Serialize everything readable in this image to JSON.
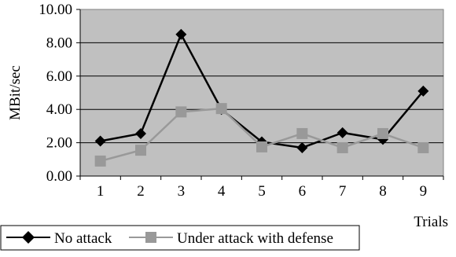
{
  "chart_data": {
    "type": "line",
    "title": "",
    "xlabel": "Trials",
    "ylabel": "MBit/sec",
    "categories": [
      "1",
      "2",
      "3",
      "4",
      "5",
      "6",
      "7",
      "8",
      "9"
    ],
    "y_ticks": [
      "0.00",
      "2.00",
      "4.00",
      "6.00",
      "8.00",
      "10.00"
    ],
    "ylim": [
      0,
      10
    ],
    "grid": true,
    "legend_position": "bottom",
    "plot_background": "#c0c0c0",
    "series": [
      {
        "name": "No attack",
        "marker": "diamond",
        "color": "#000000",
        "values": [
          2.1,
          2.55,
          8.5,
          4.0,
          2.05,
          1.7,
          2.6,
          2.2,
          5.1
        ]
      },
      {
        "name": "Under attack with defense",
        "marker": "square",
        "color": "#999999",
        "values": [
          0.9,
          1.55,
          3.85,
          4.05,
          1.75,
          2.55,
          1.7,
          2.55,
          1.7
        ]
      }
    ]
  }
}
